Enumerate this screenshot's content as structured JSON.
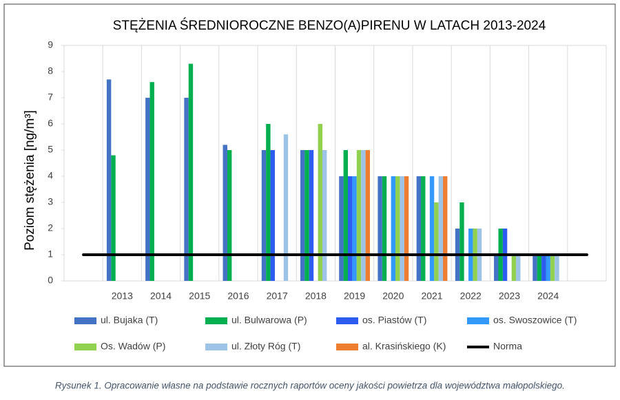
{
  "chart_data": {
    "type": "bar",
    "title": "STĘŻENIA ŚREDNIOROCZNE BENZO(A)PIRENU W LATACH 2013-2024",
    "ylabel": "Poziom stężenia [ng/m³]",
    "categories": [
      null,
      "2013",
      "2014",
      "2015",
      "2016",
      "2017",
      "2018",
      "2019",
      "2020",
      "2021",
      "2022",
      "2023",
      "2024",
      null
    ],
    "ylim": [
      0,
      9
    ],
    "yticks": [
      0,
      1,
      2,
      3,
      4,
      5,
      6,
      7,
      8,
      9
    ],
    "series": [
      {
        "name": "ul. Bujaka (T)",
        "color": "#4472c4",
        "values": [
          null,
          7.7,
          7,
          7,
          5.2,
          5,
          5,
          4,
          4,
          4,
          2,
          1,
          1,
          null
        ]
      },
      {
        "name": "ul. Bulwarowa (P)",
        "color": "#00b050",
        "values": [
          null,
          4.8,
          7.6,
          8.3,
          5,
          6,
          5,
          5,
          4,
          4,
          3,
          2,
          1,
          null
        ]
      },
      {
        "name": "os. Piastów (T)",
        "color": "#2f5cf0",
        "values": [
          null,
          null,
          null,
          null,
          null,
          5,
          5,
          4,
          null,
          null,
          null,
          2,
          1,
          null
        ]
      },
      {
        "name": "os. Swoszowice (T)",
        "color": "#3399ff",
        "values": [
          null,
          null,
          null,
          null,
          null,
          null,
          null,
          4,
          4,
          4,
          2,
          null,
          1,
          null
        ]
      },
      {
        "name": "Os. Wadów (P)",
        "color": "#92d050",
        "values": [
          null,
          null,
          null,
          null,
          null,
          null,
          6,
          5,
          4,
          3,
          2,
          1,
          1,
          null
        ]
      },
      {
        "name": "ul. Złoty Róg (T)",
        "color": "#9dc3e6",
        "values": [
          null,
          null,
          null,
          null,
          null,
          5.6,
          5,
          5,
          4,
          4,
          2,
          1,
          1,
          null
        ]
      },
      {
        "name": "al. Krasińskiego (K)",
        "color": "#ed7d31",
        "values": [
          null,
          null,
          null,
          null,
          null,
          null,
          null,
          5,
          4,
          4,
          null,
          null,
          null,
          null
        ]
      },
      {
        "name": "Norma",
        "color": "#000000",
        "type": "line",
        "values": [
          1,
          1,
          1,
          1,
          1,
          1,
          1,
          1,
          1,
          1,
          1,
          1,
          1,
          1
        ]
      }
    ]
  },
  "caption": "Rysunek 1. Opracowanie własne na podstawie rocznych raportów oceny jakości powietrza dla województwa małopolskiego."
}
